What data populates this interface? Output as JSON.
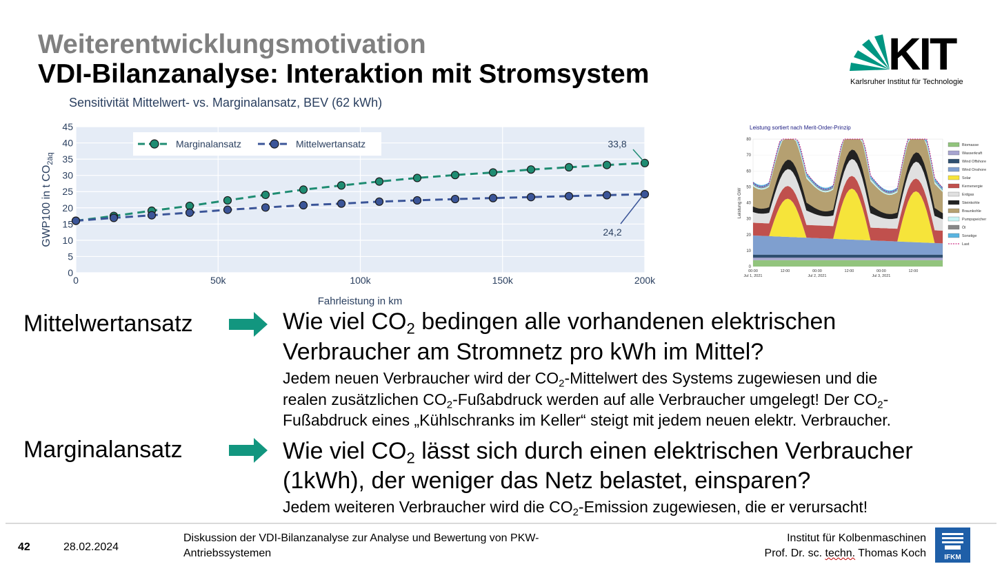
{
  "slide": {
    "title_line1": "Weiterentwicklungsmotivation",
    "title_line2": "VDI-Bilanzanalyse: Interaktion mit Stromsystem",
    "logo_text": "KIT",
    "logo_subtitle": "Karlsruher Institut für Technologie"
  },
  "chart_data": [
    {
      "type": "line",
      "title": "Sensitivität Mittelwert- vs. Marginalansatz, BEV (62 kWh)",
      "xlabel": "Fahrleistung in km",
      "ylabel_main": "GWP100 in t CO",
      "ylabel_sub": "2äq",
      "x": [
        0,
        13333,
        26667,
        40000,
        53333,
        66667,
        80000,
        93333,
        106667,
        120000,
        133333,
        146667,
        160000,
        173333,
        186667,
        200000
      ],
      "series": [
        {
          "name": "Marginalansatz",
          "color": "#1f8c72",
          "values": [
            16.0,
            17.5,
            19.1,
            20.6,
            22.3,
            24.0,
            25.6,
            26.9,
            28.1,
            29.2,
            30.1,
            30.9,
            31.8,
            32.5,
            33.2,
            33.8
          ]
        },
        {
          "name": "Mittelwertansatz",
          "color": "#3b5598",
          "values": [
            16.0,
            16.9,
            17.7,
            18.5,
            19.4,
            20.1,
            20.8,
            21.3,
            21.9,
            22.3,
            22.7,
            23.0,
            23.3,
            23.6,
            23.9,
            24.2
          ]
        }
      ],
      "xlim": [
        0,
        200000
      ],
      "ylim": [
        0,
        45
      ],
      "x_ticks": [
        "0",
        "50k",
        "100k",
        "150k",
        "200k"
      ],
      "y_ticks": [
        "0",
        "5",
        "10",
        "15",
        "20",
        "25",
        "30",
        "35",
        "40",
        "45"
      ],
      "annotations": [
        "33,8",
        "24,2"
      ],
      "legend_position": "top-left",
      "grid": true
    },
    {
      "type": "area",
      "title": "Leistung sortiert nach Merit-Order-Prinzip",
      "ylabel": "Leistung in GW",
      "ylim": [
        0,
        80
      ],
      "y_ticks": [
        "0",
        "10",
        "20",
        "30",
        "40",
        "50",
        "60",
        "70",
        "80"
      ],
      "x_ticks": [
        "00:00",
        "12:00",
        "00:00",
        "12:00",
        "00:00",
        "12:00"
      ],
      "x_dates": [
        "Jul 1, 2021",
        "Jul 2, 2021",
        "Jul 3, 2021"
      ],
      "legend": [
        {
          "name": "Biomasse",
          "color": "#92c47d"
        },
        {
          "name": "Wasserkraft",
          "color": "#a7a4cf"
        },
        {
          "name": "Wind Offshore",
          "color": "#2f4f6f"
        },
        {
          "name": "Wind Onshore",
          "color": "#7f9fcf"
        },
        {
          "name": "Solar",
          "color": "#f6e43a"
        },
        {
          "name": "Kernenergie",
          "color": "#c0504d"
        },
        {
          "name": "Erdgas",
          "color": "#e0e0e0"
        },
        {
          "name": "Steinkohle",
          "color": "#222222"
        },
        {
          "name": "Braunkohle",
          "color": "#b5a071"
        },
        {
          "name": "Pumpspeicher",
          "color": "#c8f4f4"
        },
        {
          "name": "Öl",
          "color": "#888888"
        },
        {
          "name": "Sonstige",
          "color": "#5ab4e0"
        },
        {
          "name": "Last",
          "color": "#c0006a"
        }
      ]
    }
  ],
  "comparison": [
    {
      "label": "Mittelwertansatz",
      "question_a": "Wie viel CO",
      "question_sub": "2",
      "question_b": " bedingen alle vorhandenen elektrischen",
      "question_line2": "Verbraucher am Stromnetz pro kWh im Mittel?",
      "desc_line1_a": "Jedem neuen Verbraucher wird der CO",
      "desc_line1_sub": "2",
      "desc_line1_b": "-Mittelwert des Systems zugewiesen und die",
      "desc_line2_a": "realen zusätzlichen CO",
      "desc_line2_sub": "2",
      "desc_line2_b": "-Fußabdruck werden auf alle Verbraucher umgelegt! Der CO",
      "desc_line2_sub2": "2",
      "desc_line2_c": "-",
      "desc_line3": "Fußabdruck eines „Kühlschranks im Keller“ steigt mit jedem neuen elektr. Verbraucher."
    },
    {
      "label": "Marginalansatz",
      "question_a": "Wie viel CO",
      "question_sub": "2",
      "question_b": " lässt sich durch einen elektrischen Verbraucher",
      "question_line2": "(1kWh), der weniger das Netz belastet, einsparen?",
      "desc_line1_a": "Jedem weiteren Verbraucher wird die CO",
      "desc_line1_sub": "2",
      "desc_line1_b": "-Emission zugewiesen, die er verursacht!"
    }
  ],
  "footer": {
    "page_number": "42",
    "date": "28.02.2024",
    "description_line1": "Diskussion der VDI-Bilanzanalyse zur Analyse und Bewertung von PKW-",
    "description_line2": "Antriebssystemen",
    "institute": "Institut für Kolbenmaschinen",
    "author_a": "Prof. Dr. sc. ",
    "author_b": "techn.",
    "author_c": " Thomas Koch",
    "ifkm_logo_text": "IFKM"
  },
  "colors": {
    "kit_green": "#009682",
    "arrow_green": "#12967f",
    "plot_bg": "#e5ecf6",
    "ifkm_blue": "#1f5fa8"
  }
}
